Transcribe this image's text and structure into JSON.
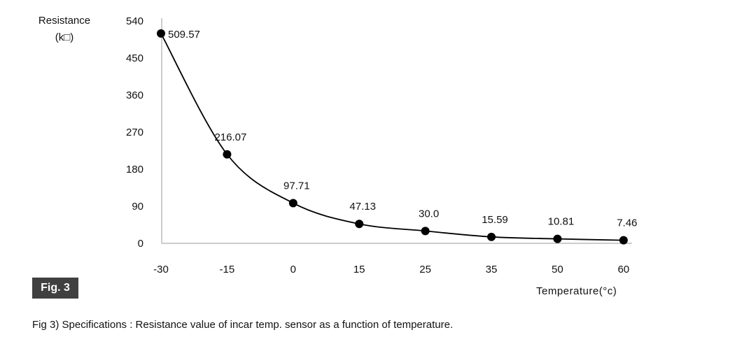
{
  "chart_data": {
    "type": "line",
    "x_categories": [
      "-30",
      "-15",
      "0",
      "15",
      "25",
      "35",
      "50",
      "60"
    ],
    "values": [
      509.57,
      216.07,
      97.71,
      47.13,
      30.0,
      15.59,
      10.81,
      7.46
    ],
    "data_labels": [
      "509.57",
      "216.07",
      "97.71",
      "47.13",
      "30.0",
      "15.59",
      "10.81",
      "7.46"
    ],
    "y_ticks": [
      0,
      90,
      180,
      270,
      360,
      450,
      540
    ],
    "ylim": [
      0,
      540
    ],
    "ylabel_line1": "Resistance",
    "ylabel_line2": "(k□)",
    "xlabel": "Temperature(°c)",
    "grid": false,
    "line_color": "#000000"
  },
  "badge": "Fig. 3",
  "caption": "Fig 3) Specifications : Resistance value of incar temp. sensor as a function of temperature."
}
